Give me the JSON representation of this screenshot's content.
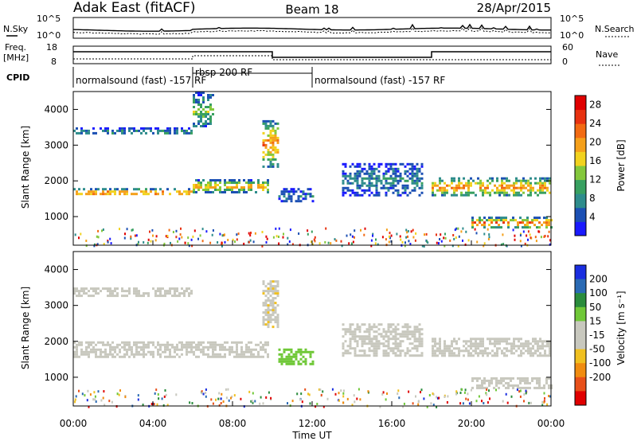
{
  "header": {
    "station": "Adak East (fitACF)",
    "beam": "Beam 18",
    "date": "28/Apr/2015"
  },
  "noise_panel": {
    "left_label": "N.Sky",
    "left_ticks": [
      "10^5",
      "10^0"
    ],
    "right_label": "N.Search",
    "right_ticks": [
      "10^5",
      "10^0"
    ]
  },
  "freq_panel": {
    "left_label_line1": "Freq.",
    "left_label_line2": "[MHz]",
    "left_ticks": [
      "18",
      "8"
    ],
    "right_label": "Nave",
    "right_ticks": [
      "60",
      "0"
    ]
  },
  "cpid": {
    "label": "CPID",
    "segments": [
      {
        "text": "normalsound (fast) -157 RF",
        "start_hour": 0,
        "end_hour": 6
      },
      {
        "text": "rbsp 200 RF",
        "start_hour": 6,
        "end_hour": 12
      },
      {
        "text": "normalsound (fast) -157 RF",
        "start_hour": 12,
        "end_hour": 24
      }
    ]
  },
  "colors": {
    "power_scale": [
      "#1a1aff",
      "#1c50b4",
      "#2e8c8c",
      "#38a060",
      "#84c83c",
      "#f2d21e",
      "#f5a01a",
      "#f26a12",
      "#e83210",
      "#e00000"
    ],
    "velocity_scale": [
      "#1a2ee0",
      "#2a6ab4",
      "#2a8c3c",
      "#70c838",
      "#c8c8be",
      "#c8c8be",
      "#f0c020",
      "#f08c10",
      "#e8501a",
      "#e00000"
    ]
  },
  "chart_data": [
    {
      "type": "heatmap",
      "name": "power",
      "xlabel": "",
      "ylabel": "Slant Range [km]",
      "xlim": [
        0,
        24
      ],
      "ylim": [
        200,
        4500
      ],
      "yticks": [
        1000,
        2000,
        3000,
        4000
      ],
      "colorbar": {
        "label": "Power [dB]",
        "ticks": [
          4,
          8,
          12,
          16,
          20,
          24,
          28
        ],
        "range": [
          0,
          30
        ]
      },
      "echo_bands": [
        {
          "start_hour": 0.0,
          "end_hour": 6.0,
          "range_km": [
            1600,
            1800
          ],
          "power_db": 22
        },
        {
          "start_hour": 6.0,
          "end_hour": 9.8,
          "range_km": [
            1700,
            2050
          ],
          "power_db": 18
        },
        {
          "start_hour": 0.0,
          "end_hour": 6.0,
          "range_km": [
            3300,
            3500
          ],
          "power_db": 8
        },
        {
          "start_hour": 6.0,
          "end_hour": 7.0,
          "range_km": [
            3500,
            4500
          ],
          "power_db": 12
        },
        {
          "start_hour": 9.5,
          "end_hour": 10.3,
          "range_km": [
            2400,
            3700
          ],
          "power_db": 20
        },
        {
          "start_hour": 10.3,
          "end_hour": 12.0,
          "range_km": [
            1400,
            1800
          ],
          "power_db": 6
        },
        {
          "start_hour": 13.5,
          "end_hour": 17.5,
          "range_km": [
            1600,
            2500
          ],
          "power_db": 7
        },
        {
          "start_hour": 18.0,
          "end_hour": 24.0,
          "range_km": [
            1600,
            2100
          ],
          "power_db": 20
        },
        {
          "start_hour": 20.0,
          "end_hour": 24.0,
          "range_km": [
            700,
            1000
          ],
          "power_db": 22
        }
      ]
    },
    {
      "type": "heatmap",
      "name": "velocity",
      "xlabel": "Time UT",
      "ylabel": "Slant Range [km]",
      "xlim": [
        0,
        24
      ],
      "ylim": [
        200,
        4500
      ],
      "xticks": [
        "00:00",
        "04:00",
        "08:00",
        "12:00",
        "16:00",
        "20:00",
        "00:00"
      ],
      "yticks": [
        1000,
        2000,
        3000,
        4000
      ],
      "colorbar": {
        "label": "Velocity [m s⁻¹]",
        "ticks": [
          200,
          100,
          50,
          15,
          -15,
          -50,
          -100,
          -200
        ]
      },
      "echo_bands": [
        {
          "start_hour": 0.0,
          "end_hour": 9.8,
          "range_km": [
            1600,
            2000
          ],
          "velocity_ms": 0
        },
        {
          "start_hour": 0.0,
          "end_hour": 6.0,
          "range_km": [
            3300,
            3500
          ],
          "velocity_ms": 0
        },
        {
          "start_hour": 9.5,
          "end_hour": 10.3,
          "range_km": [
            2400,
            3700
          ],
          "velocity_ms": -40
        },
        {
          "start_hour": 10.3,
          "end_hour": 12.0,
          "range_km": [
            1400,
            1800
          ],
          "velocity_ms": 80
        },
        {
          "start_hour": 13.5,
          "end_hour": 17.5,
          "range_km": [
            1600,
            2500
          ],
          "velocity_ms": 30
        },
        {
          "start_hour": 18.0,
          "end_hour": 24.0,
          "range_km": [
            1600,
            2100
          ],
          "velocity_ms": 0
        },
        {
          "start_hour": 20.0,
          "end_hour": 24.0,
          "range_km": [
            700,
            1000
          ],
          "velocity_ms": 0
        }
      ]
    }
  ]
}
